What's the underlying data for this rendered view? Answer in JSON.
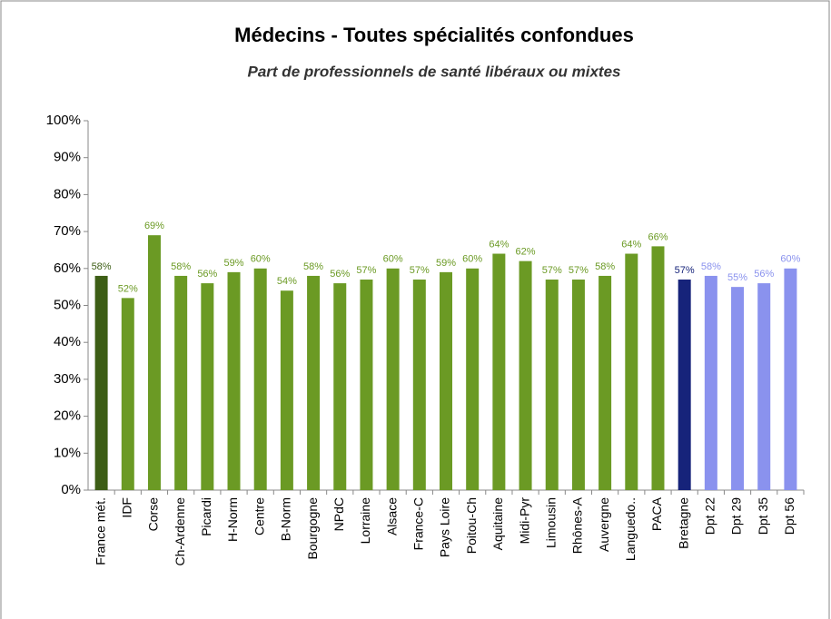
{
  "chart_data": {
    "type": "bar",
    "title": "Médecins - Toutes spécialités confondues",
    "subtitle": "Part de professionnels de santé libéraux ou mixtes",
    "categories": [
      "France mét.",
      "IDF",
      "Corse",
      "Ch-Ardenne",
      "Picardi",
      "H-Norm",
      "Centre",
      "B-Norm",
      "Bourgogne",
      "NPdC",
      "Lorraine",
      "Alsace",
      "France-C",
      "Pays Loire",
      "Poitou-Ch",
      "Aquitaine",
      "Midi-Pyr",
      "Limousin",
      "Rhônes-A",
      "Auvergne",
      "Languedo..",
      "PACA",
      "Bretagne",
      "Dpt 22",
      "Dpt 29",
      "Dpt 35",
      "Dpt 56"
    ],
    "values": [
      58,
      52,
      69,
      58,
      56,
      59,
      60,
      54,
      58,
      56,
      57,
      60,
      57,
      59,
      60,
      64,
      62,
      57,
      57,
      58,
      64,
      66,
      57,
      58,
      55,
      56,
      60
    ],
    "value_labels": [
      "58%",
      "52%",
      "69%",
      "58%",
      "56%",
      "59%",
      "60%",
      "54%",
      "58%",
      "56%",
      "57%",
      "60%",
      "57%",
      "59%",
      "60%",
      "64%",
      "62%",
      "57%",
      "57%",
      "58%",
      "64%",
      "66%",
      "57%",
      "58%",
      "55%",
      "56%",
      "60%"
    ],
    "colors": [
      "#3d5e16",
      "#6b9a24",
      "#6b9a24",
      "#6b9a24",
      "#6b9a24",
      "#6b9a24",
      "#6b9a24",
      "#6b9a24",
      "#6b9a24",
      "#6b9a24",
      "#6b9a24",
      "#6b9a24",
      "#6b9a24",
      "#6b9a24",
      "#6b9a24",
      "#6b9a24",
      "#6b9a24",
      "#6b9a24",
      "#6b9a24",
      "#6b9a24",
      "#6b9a24",
      "#6b9a24",
      "#16237a",
      "#8a92ee",
      "#8a92ee",
      "#8a92ee",
      "#8a92ee"
    ],
    "ylim": [
      0,
      100
    ],
    "yticks": [
      {
        "value": 0,
        "label": "0%"
      },
      {
        "value": 10,
        "label": "10%"
      },
      {
        "value": 20,
        "label": "20%"
      },
      {
        "value": 30,
        "label": "30%"
      },
      {
        "value": 40,
        "label": "40%"
      },
      {
        "value": 50,
        "label": "50%"
      },
      {
        "value": 60,
        "label": "60%"
      },
      {
        "value": 70,
        "label": "70%"
      },
      {
        "value": 80,
        "label": "80%"
      },
      {
        "value": 90,
        "label": "90%"
      },
      {
        "value": 100,
        "label": "100%"
      }
    ],
    "grid": false
  }
}
